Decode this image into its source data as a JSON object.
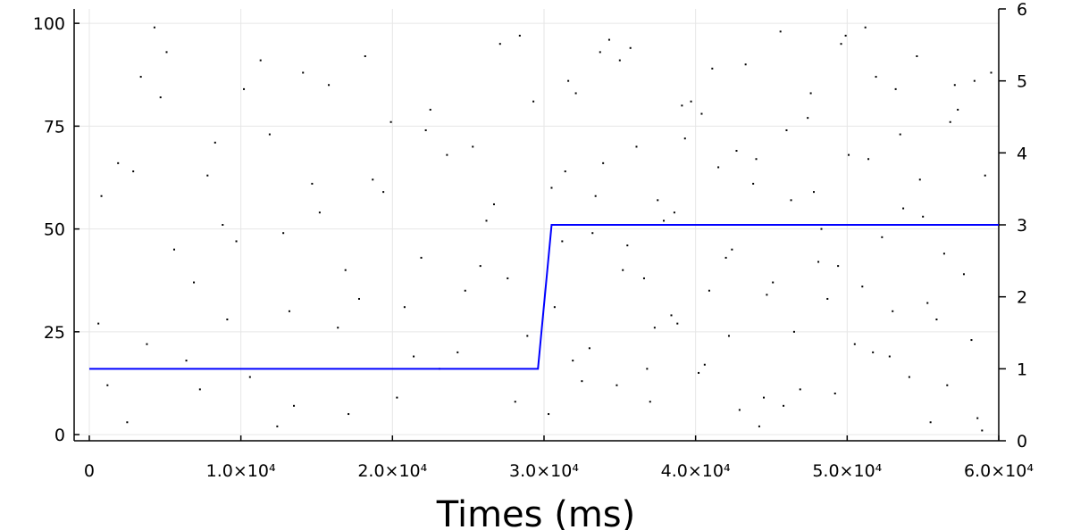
{
  "chart_data": {
    "type": "raster",
    "xlabel": "Times (ms)",
    "grid": true,
    "xlim": [
      -1000,
      60000
    ],
    "xticks": [
      0,
      {
        "value": 10000,
        "label": "1.0×10⁴"
      },
      {
        "value": 20000,
        "label": "2.0×10⁴"
      },
      {
        "value": 30000,
        "label": "3.0×10⁴"
      },
      {
        "value": 40000,
        "label": "4.0×10⁴"
      },
      {
        "value": 50000,
        "label": "5.0×10⁴"
      },
      {
        "value": 60000,
        "label": "6.0×10⁴"
      }
    ],
    "ylim": [
      -1.5,
      103.5
    ],
    "yticks": [
      0,
      25,
      50,
      75,
      100
    ],
    "y2lim": [
      0,
      6
    ],
    "y2ticks": [
      0,
      1,
      2,
      3,
      4,
      5,
      6
    ],
    "series": [
      {
        "type": "scatter",
        "color": "#000000",
        "x": [
          1200,
          3400,
          5600,
          7800,
          9100,
          11300,
          13500,
          15200,
          17800,
          19900,
          21400,
          23600,
          25800,
          27100,
          28900,
          800,
          2500,
          4700,
          6900,
          8300,
          10600,
          12800,
          14100,
          16400,
          18700,
          20300,
          22500,
          24800,
          26200,
          28400,
          1900,
          3800,
          5100,
          7300,
          9700,
          11900,
          13200,
          15800,
          17100,
          19400,
          21900,
          23100,
          25300,
          27600,
          29300,
          600,
          2900,
          4300,
          6400,
          8800,
          10200,
          12400,
          14700,
          16900,
          18200,
          20800,
          22200,
          24300,
          26700,
          28100,
          30300,
          31200,
          32100,
          33000,
          33900,
          34800,
          35700,
          36600,
          37500,
          38400,
          39300,
          40200,
          41100,
          42000,
          42900,
          43800,
          44700,
          45600,
          46500,
          47400,
          48300,
          49200,
          50100,
          51000,
          51900,
          52800,
          53700,
          54600,
          55500,
          56400,
          57300,
          58200,
          59100,
          30700,
          31600,
          32500,
          33400,
          34300,
          35200,
          36100,
          37000,
          37900,
          38800,
          39700,
          40600,
          41500,
          42400,
          43300,
          44200,
          45100,
          46000,
          46900,
          47800,
          48700,
          49600,
          50500,
          51400,
          52300,
          53200,
          54100,
          55000,
          55900,
          56800,
          57700,
          58600,
          59500,
          30500,
          31900,
          33700,
          35500,
          37300,
          39100,
          40900,
          42700,
          44500,
          46300,
          48100,
          49900,
          51700,
          53500,
          55300,
          57100,
          58900,
          31400,
          33200,
          35000,
          36800,
          38600,
          40400,
          42200,
          44000,
          45800,
          47600,
          49400,
          51200,
          53000,
          54800,
          56600,
          58400,
          59800
        ],
        "values": [
          12,
          87,
          45,
          63,
          28,
          91,
          7,
          54,
          33,
          76,
          19,
          68,
          41,
          95,
          24,
          58,
          3,
          82,
          37,
          71,
          14,
          49,
          88,
          26,
          62,
          9,
          79,
          35,
          52,
          97,
          66,
          22,
          93,
          11,
          47,
          73,
          30,
          85,
          5,
          59,
          43,
          16,
          70,
          38,
          81,
          27,
          64,
          99,
          18,
          51,
          84,
          2,
          61,
          40,
          92,
          31,
          74,
          20,
          56,
          8,
          5,
          47,
          83,
          21,
          66,
          12,
          94,
          38,
          57,
          29,
          72,
          15,
          89,
          43,
          6,
          61,
          34,
          98,
          25,
          77,
          50,
          10,
          68,
          36,
          87,
          19,
          55,
          92,
          3,
          44,
          79,
          23,
          63,
          31,
          86,
          13,
          58,
          96,
          40,
          70,
          8,
          52,
          27,
          81,
          17,
          65,
          45,
          90,
          2,
          37,
          74,
          11,
          59,
          33,
          95,
          22,
          67,
          48,
          84,
          14,
          53,
          28,
          76,
          39,
          4,
          88,
          60,
          18,
          93,
          46,
          26,
          80,
          35,
          69,
          9,
          57,
          42,
          97,
          20,
          73,
          32,
          85,
          1,
          64,
          49,
          91,
          16,
          54,
          78,
          24,
          67,
          7,
          83,
          41,
          99,
          30,
          62,
          12,
          86,
          51
        ]
      },
      {
        "type": "line",
        "color": "#0000ff",
        "axis": "y2",
        "x": [
          0,
          29600,
          30500,
          60000
        ],
        "values": [
          1.0,
          1.0,
          3.0,
          3.0
        ]
      }
    ]
  }
}
